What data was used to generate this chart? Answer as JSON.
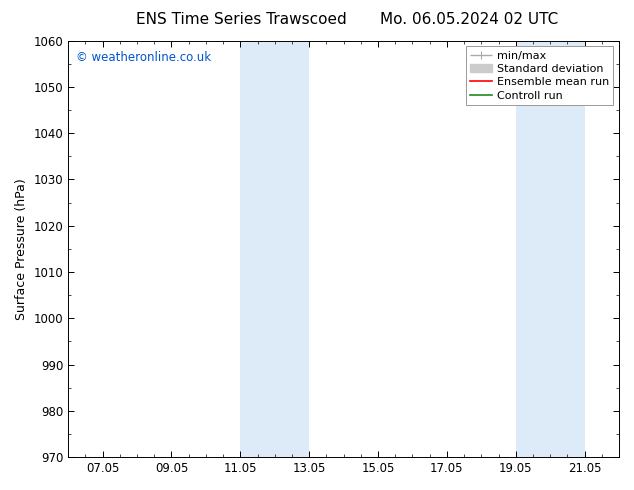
{
  "title_left": "ENS Time Series Trawscoed",
  "title_right": "Mo. 06.05.2024 02 UTC",
  "ylabel": "Surface Pressure (hPa)",
  "ylim": [
    970,
    1060
  ],
  "yticks": [
    970,
    980,
    990,
    1000,
    1010,
    1020,
    1030,
    1040,
    1050,
    1060
  ],
  "xtick_labels": [
    "07.05",
    "09.05",
    "11.05",
    "13.05",
    "15.05",
    "17.05",
    "19.05",
    "21.05"
  ],
  "xtick_positions": [
    1,
    3,
    5,
    7,
    9,
    11,
    13,
    15
  ],
  "x_min": 0,
  "x_max": 16,
  "shaded_bands": [
    {
      "x_start": 5,
      "x_end": 7,
      "color": "#ddeaf7"
    },
    {
      "x_start": 13,
      "x_end": 15,
      "color": "#ddeaf7"
    }
  ],
  "watermark": "© weatheronline.co.uk",
  "watermark_color": "#0055cc",
  "background_color": "#ffffff",
  "title_fontsize": 11,
  "axis_label_fontsize": 9,
  "tick_fontsize": 8.5,
  "legend_fontsize": 8,
  "legend_minmax_color": "#aaaaaa",
  "legend_std_color": "#cccccc",
  "legend_ens_color": "#ff0000",
  "legend_ctrl_color": "#228822"
}
